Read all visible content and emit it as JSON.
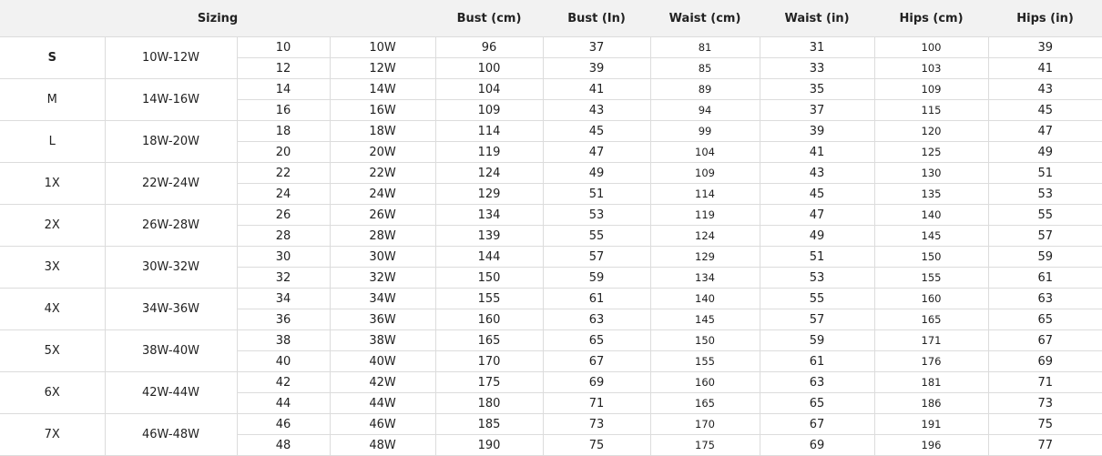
{
  "header": {
    "sizing": "Sizing",
    "bust_cm": "Bust (cm)",
    "bust_in": "Bust (In)",
    "waist_cm": "Waist (cm)",
    "waist_in": "Waist (in)",
    "hips_cm": "Hips (cm)",
    "hips_in": "Hips (in)"
  },
  "groups": [
    {
      "size": "S",
      "range": "10W-12W",
      "rows": [
        [
          "10",
          "10W",
          "96",
          "37",
          "81",
          "31",
          "100",
          "39"
        ],
        [
          "12",
          "12W",
          "100",
          "39",
          "85",
          "33",
          "103",
          "41"
        ]
      ]
    },
    {
      "size": "M",
      "range": "14W-16W",
      "rows": [
        [
          "14",
          "14W",
          "104",
          "41",
          "89",
          "35",
          "109",
          "43"
        ],
        [
          "16",
          "16W",
          "109",
          "43",
          "94",
          "37",
          "115",
          "45"
        ]
      ]
    },
    {
      "size": "L",
      "range": "18W-20W",
      "rows": [
        [
          "18",
          "18W",
          "114",
          "45",
          "99",
          "39",
          "120",
          "47"
        ],
        [
          "20",
          "20W",
          "119",
          "47",
          "104",
          "41",
          "125",
          "49"
        ]
      ]
    },
    {
      "size": "1X",
      "range": "22W-24W",
      "rows": [
        [
          "22",
          "22W",
          "124",
          "49",
          "109",
          "43",
          "130",
          "51"
        ],
        [
          "24",
          "24W",
          "129",
          "51",
          "114",
          "45",
          "135",
          "53"
        ]
      ]
    },
    {
      "size": "2X",
      "range": "26W-28W",
      "rows": [
        [
          "26",
          "26W",
          "134",
          "53",
          "119",
          "47",
          "140",
          "55"
        ],
        [
          "28",
          "28W",
          "139",
          "55",
          "124",
          "49",
          "145",
          "57"
        ]
      ]
    },
    {
      "size": "3X",
      "range": "30W-32W",
      "rows": [
        [
          "30",
          "30W",
          "144",
          "57",
          "129",
          "51",
          "150",
          "59"
        ],
        [
          "32",
          "32W",
          "150",
          "59",
          "134",
          "53",
          "155",
          "61"
        ]
      ]
    },
    {
      "size": "4X",
      "range": "34W-36W",
      "rows": [
        [
          "34",
          "34W",
          "155",
          "61",
          "140",
          "55",
          "160",
          "63"
        ],
        [
          "36",
          "36W",
          "160",
          "63",
          "145",
          "57",
          "165",
          "65"
        ]
      ]
    },
    {
      "size": "5X",
      "range": "38W-40W",
      "rows": [
        [
          "38",
          "38W",
          "165",
          "65",
          "150",
          "59",
          "171",
          "67"
        ],
        [
          "40",
          "40W",
          "170",
          "67",
          "155",
          "61",
          "176",
          "69"
        ]
      ]
    },
    {
      "size": "6X",
      "range": "42W-44W",
      "rows": [
        [
          "42",
          "42W",
          "175",
          "69",
          "160",
          "63",
          "181",
          "71"
        ],
        [
          "44",
          "44W",
          "180",
          "71",
          "165",
          "65",
          "186",
          "73"
        ]
      ]
    },
    {
      "size": "7X",
      "range": "46W-48W",
      "rows": [
        [
          "46",
          "46W",
          "185",
          "73",
          "170",
          "67",
          "191",
          "75"
        ],
        [
          "48",
          "48W",
          "190",
          "75",
          "175",
          "69",
          "196",
          "77"
        ]
      ]
    }
  ]
}
